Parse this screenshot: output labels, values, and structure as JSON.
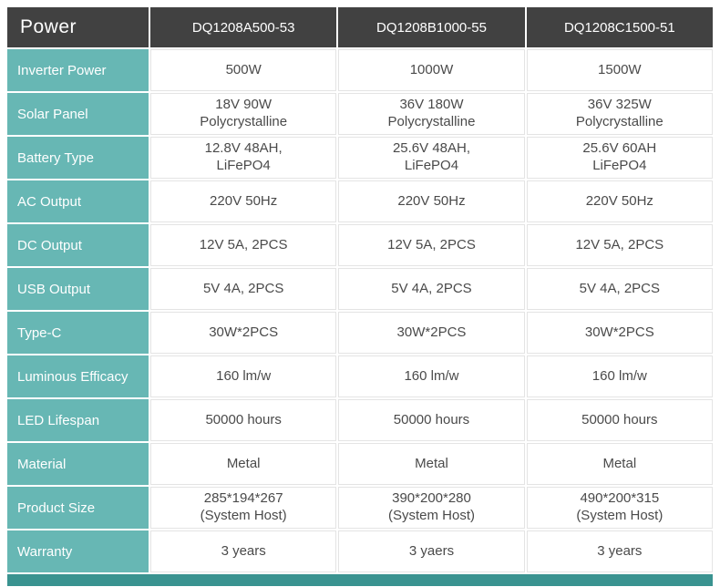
{
  "colors": {
    "header_bg": "#414141",
    "label_bg": "#67b7b4",
    "cell_border": "#e4e4e4",
    "cell_text": "#4a4a4a",
    "footer_bar": "#3a9390"
  },
  "table": {
    "header": {
      "title": "Power",
      "columns": [
        "DQ1208A500-53",
        "DQ1208B1000-55",
        "DQ1208C1500-51"
      ]
    },
    "rows": [
      {
        "label": "Inverter Power",
        "values": [
          "500W",
          "1000W",
          "1500W"
        ]
      },
      {
        "label": "Solar Panel",
        "values": [
          "18V 90W\nPolycrystalline",
          "36V 180W\nPolycrystalline",
          "36V 325W\nPolycrystalline"
        ]
      },
      {
        "label": "Battery Type",
        "values": [
          "12.8V 48AH,\nLiFePO4",
          "25.6V 48AH,\nLiFePO4",
          "25.6V 60AH\nLiFePO4"
        ]
      },
      {
        "label": "AC Output",
        "values": [
          "220V 50Hz",
          "220V 50Hz",
          "220V 50Hz"
        ]
      },
      {
        "label": "DC Output",
        "values": [
          "12V 5A, 2PCS",
          "12V 5A, 2PCS",
          "12V 5A, 2PCS"
        ]
      },
      {
        "label": "USB Output",
        "values": [
          "5V 4A, 2PCS",
          "5V 4A, 2PCS",
          "5V 4A, 2PCS"
        ]
      },
      {
        "label": "Type-C",
        "values": [
          "30W*2PCS",
          "30W*2PCS",
          "30W*2PCS"
        ]
      },
      {
        "label": "Luminous Efficacy",
        "values": [
          "160 lm/w",
          "160 lm/w",
          "160 lm/w"
        ]
      },
      {
        "label": "LED Lifespan",
        "values": [
          "50000 hours",
          "50000 hours",
          "50000 hours"
        ]
      },
      {
        "label": "Material",
        "values": [
          "Metal",
          "Metal",
          "Metal"
        ]
      },
      {
        "label": "Product Size",
        "values": [
          "285*194*267\n(System Host)",
          "390*200*280\n(System Host)",
          "490*200*315\n(System Host)"
        ]
      },
      {
        "label": "Warranty",
        "values": [
          "3 years",
          "3 yaers",
          "3 years"
        ]
      }
    ]
  }
}
